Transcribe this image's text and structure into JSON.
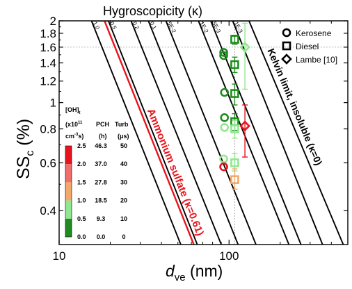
{
  "chart_data": {
    "type": "scatter",
    "top_label": "Hygroscopicity (κ)",
    "xlabel_main": "d",
    "xlabel_sub": "ve",
    "xlabel_unit": "(nm)",
    "ylabel_main": "SS",
    "ylabel_sub": "c",
    "ylabel_unit": "(%)",
    "xscale": "log",
    "yscale": "log",
    "xlim": [
      10,
      500
    ],
    "ylim": [
      0.3,
      2.0
    ],
    "xtick_labels": [
      "10",
      "100"
    ],
    "ytick_labels": [
      {
        "v": 2.0,
        "t": "2"
      },
      {
        "v": 1.8,
        "t": "1.8"
      },
      {
        "v": 1.6,
        "t": "1.6"
      },
      {
        "v": 1.4,
        "t": "1.4"
      },
      {
        "v": 1.2,
        "t": "1.2"
      },
      {
        "v": 1.0,
        "t": "1"
      },
      {
        "v": 0.8,
        "t": "0.8"
      },
      {
        "v": 0.6,
        "t": "0.6"
      },
      {
        "v": 0.4,
        "t": "0.4"
      }
    ],
    "ref_lines": {
      "y": 1.6,
      "x": 108
    },
    "kappa_lines": [
      {
        "label": "1.0",
        "x_top": 15.5,
        "x_bot": 52
      },
      {
        "label": "0.5",
        "x_top": 19.5,
        "x_bot": 65
      },
      {
        "label": "0.2",
        "x_top": 26.5,
        "x_bot": 90
      },
      {
        "label": "0.1",
        "x_top": 33.5,
        "x_bot": 113
      },
      {
        "label": "5E-2",
        "x_top": 42.5,
        "x_bot": 144
      },
      {
        "label": "1E-2",
        "x_top": 66,
        "x_bot": 225
      },
      {
        "label": "5E-3",
        "x_top": 78,
        "x_bot": 265
      },
      {
        "label": "1E-3",
        "x_top": 105,
        "x_bot": 355
      },
      {
        "label": "",
        "x_top": 131,
        "x_bot": 470
      }
    ],
    "ammonium": {
      "label": "Ammonium sulfate (κ=0.61)",
      "x_top": 18.5,
      "x_bot": 62,
      "color": "#e8141d"
    },
    "kelvin_label": "Kelvin limit, insoluble (κ=0)",
    "series": [
      {
        "name": "Kerosene",
        "marker": "circle",
        "points": [
          {
            "x": 93,
            "y": 1.53,
            "color": "#1f8c1f"
          },
          {
            "x": 93,
            "y": 1.49,
            "color": "#1f8c1f"
          },
          {
            "x": 94,
            "y": 1.09,
            "color": "#1f8c1f"
          },
          {
            "x": 94,
            "y": 0.88,
            "color": "#1f8c1f"
          },
          {
            "x": 94,
            "y": 0.81,
            "color": "#8fe88f"
          },
          {
            "x": 93,
            "y": 0.62,
            "color": "#8fe88f"
          },
          {
            "x": 93,
            "y": 0.58,
            "color": "#e8141d"
          }
        ]
      },
      {
        "name": "Diesel",
        "marker": "square",
        "points": [
          {
            "x": 108,
            "y": 1.71,
            "color": "#1f8c1f",
            "ylo": 1.64,
            "yhi": 1.77
          },
          {
            "x": 108,
            "y": 1.38,
            "color": "#1f8c1f",
            "ylo": 1.29,
            "yhi": 1.47
          },
          {
            "x": 108,
            "y": 1.08,
            "color": "#1f8c1f",
            "ylo": 0.98,
            "yhi": 1.17
          },
          {
            "x": 108,
            "y": 0.85,
            "color": "#1f8c1f",
            "ylo": 0.79,
            "yhi": 0.91
          },
          {
            "x": 108,
            "y": 0.8,
            "color": "#8fe88f",
            "ylo": 0.74,
            "yhi": 0.86
          },
          {
            "x": 108,
            "y": 0.6,
            "color": "#8fe88f",
            "ylo": 0.56,
            "yhi": 0.65
          },
          {
            "x": 108,
            "y": 0.52,
            "color": "#f3a86b",
            "ylo": 0.48,
            "yhi": 0.57
          }
        ]
      },
      {
        "name": "Lambe [10]",
        "marker": "diamond",
        "points": [
          {
            "x": 124,
            "y": 1.6,
            "color": "#8fe88f",
            "ylo": 1.12,
            "yhi": 1.96
          },
          {
            "x": 124,
            "y": 0.82,
            "color": "#e8141d",
            "ylo": 0.63,
            "yhi": 0.98
          }
        ]
      }
    ],
    "colorbar": {
      "header_oh": "[OH]",
      "header_oh_sub": "t",
      "header_unit1": "(x10",
      "header_unit1_sup": "11",
      "header_unit2": "cm",
      "header_unit2_sup": "-3",
      "header_unit2_tail": "s)",
      "header_pch": "PCH",
      "header_pch_unit": "(h)",
      "header_turb": "Turb",
      "header_turb_unit": "(μs)",
      "bands": [
        "#1f8c1f",
        "#8fe88f",
        "#f3a86b",
        "#f36c6c",
        "#e8141d"
      ],
      "rows": [
        {
          "oh": "2.5",
          "pch": "46.3",
          "turb": "50"
        },
        {
          "oh": "2.0",
          "pch": "37.0",
          "turb": "40"
        },
        {
          "oh": "1.5",
          "pch": "27.8",
          "turb": "30"
        },
        {
          "oh": "1.0",
          "pch": "18.5",
          "turb": "20"
        },
        {
          "oh": "0.5",
          "pch": "9.3",
          "turb": "10"
        },
        {
          "oh": "0.0",
          "pch": "0.0",
          "turb": "0"
        }
      ]
    },
    "colors": {
      "dark_green": "#1f8c1f",
      "light_green": "#8fe88f",
      "orange": "#f3a86b",
      "light_red": "#f36c6c",
      "red": "#e8141d"
    }
  }
}
